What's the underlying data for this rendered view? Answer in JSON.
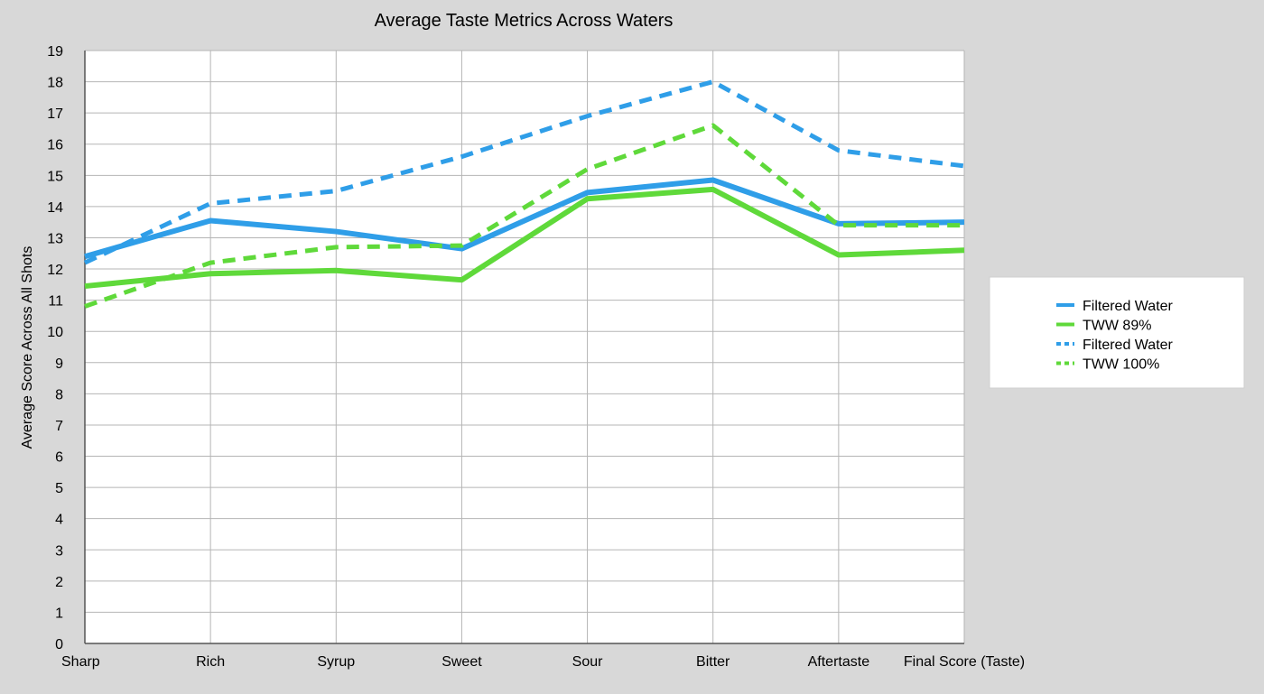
{
  "chart_data": {
    "type": "line",
    "title": "Average Taste Metrics Across Waters",
    "xlabel": "",
    "ylabel": "Average Score Across All Shots",
    "ylim": [
      0,
      19
    ],
    "yticks": [
      0,
      1,
      2,
      3,
      4,
      5,
      6,
      7,
      8,
      9,
      10,
      11,
      12,
      13,
      14,
      15,
      16,
      17,
      18,
      19
    ],
    "categories": [
      "Sharp",
      "Rich",
      "Syrup",
      "Sweet",
      "Sour",
      "Bitter",
      "Aftertaste",
      "Final Score (Taste)"
    ],
    "grid": true,
    "legend_position": "right",
    "series": [
      {
        "name": "Filtered Water",
        "color": "#2f9ee8",
        "style": "solid",
        "values": [
          12.4,
          13.55,
          13.2,
          12.65,
          14.45,
          14.85,
          13.45,
          13.5
        ]
      },
      {
        "name": "TWW 89%",
        "color": "#5fd93a",
        "style": "solid",
        "values": [
          11.45,
          11.85,
          11.95,
          11.65,
          14.25,
          14.55,
          12.45,
          12.6
        ]
      },
      {
        "name": "Filtered Water",
        "color": "#2f9ee8",
        "style": "dashed",
        "values": [
          12.2,
          14.1,
          14.5,
          15.6,
          16.9,
          18.0,
          15.8,
          15.3
        ]
      },
      {
        "name": "TWW 100%",
        "color": "#5fd93a",
        "style": "dashed",
        "values": [
          10.8,
          12.2,
          12.7,
          12.75,
          15.2,
          16.6,
          13.4,
          13.4
        ]
      }
    ]
  }
}
